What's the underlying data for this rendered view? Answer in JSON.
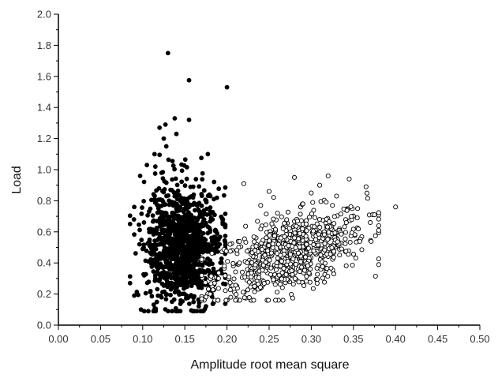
{
  "chart_data": {
    "type": "scatter",
    "title": "",
    "xlabel": "Amplitude root mean square",
    "ylabel": "Load",
    "xlim": [
      0.0,
      0.5
    ],
    "ylim": [
      0.0,
      2.0
    ],
    "x_ticks": [
      "0.00",
      "0.05",
      "0.10",
      "0.15",
      "0.20",
      "0.25",
      "0.30",
      "0.35",
      "0.40",
      "0.45",
      "0.50"
    ],
    "y_ticks": [
      "0.0",
      "0.2",
      "0.4",
      "0.6",
      "0.8",
      "1.0",
      "1.2",
      "1.4",
      "1.6",
      "1.8",
      "2.0"
    ],
    "grid": false,
    "legend": "none",
    "series": [
      {
        "marker": "filled-circle",
        "color": "#000000",
        "cluster": {
          "x_center": 0.148,
          "x_spread": 0.022,
          "x_range": [
            0.085,
            0.198
          ],
          "y_center": 0.45,
          "y_spread": 0.2,
          "y_range": [
            0.09,
            1.1
          ],
          "count": 1100
        },
        "points": [
          [
            0.13,
            1.75
          ],
          [
            0.155,
            1.575
          ],
          [
            0.2,
            1.53
          ],
          [
            0.138,
            1.33
          ],
          [
            0.155,
            1.32
          ],
          [
            0.12,
            1.27
          ],
          [
            0.127,
            1.29
          ],
          [
            0.14,
            1.23
          ],
          [
            0.125,
            1.2
          ],
          [
            0.128,
            1.15
          ],
          [
            0.105,
            1.03
          ],
          [
            0.115,
            1.02
          ],
          [
            0.097,
            0.96
          ],
          [
            0.09,
            0.76
          ],
          [
            0.1,
            0.49
          ],
          [
            0.085,
            0.27
          ],
          [
            0.09,
            0.19
          ],
          [
            0.098,
            0.1
          ],
          [
            0.195,
            0.65
          ],
          [
            0.19,
            0.55
          ]
        ]
      },
      {
        "marker": "open-circle",
        "color": "#000000",
        "cluster": {
          "x_center": 0.275,
          "x_spread": 0.045,
          "x_range": [
            0.17,
            0.38
          ],
          "y_center": 0.46,
          "y_spread": 0.12,
          "y_range": [
            0.16,
            0.88
          ],
          "count": 750
        },
        "points": [
          [
            0.4,
            0.76
          ],
          [
            0.375,
            0.71
          ],
          [
            0.365,
            0.89
          ],
          [
            0.345,
            0.94
          ],
          [
            0.32,
            0.96
          ],
          [
            0.28,
            0.95
          ],
          [
            0.22,
            0.91
          ],
          [
            0.25,
            0.86
          ],
          [
            0.38,
            0.61
          ],
          [
            0.37,
            0.66
          ],
          [
            0.355,
            0.75
          ],
          [
            0.24,
            0.77
          ],
          [
            0.26,
            0.72
          ],
          [
            0.3,
            0.85
          ],
          [
            0.31,
            0.9
          ],
          [
            0.18,
            0.2
          ],
          [
            0.17,
            0.17
          ],
          [
            0.19,
            0.3
          ],
          [
            0.33,
            0.83
          ],
          [
            0.29,
            0.78
          ]
        ]
      }
    ]
  }
}
